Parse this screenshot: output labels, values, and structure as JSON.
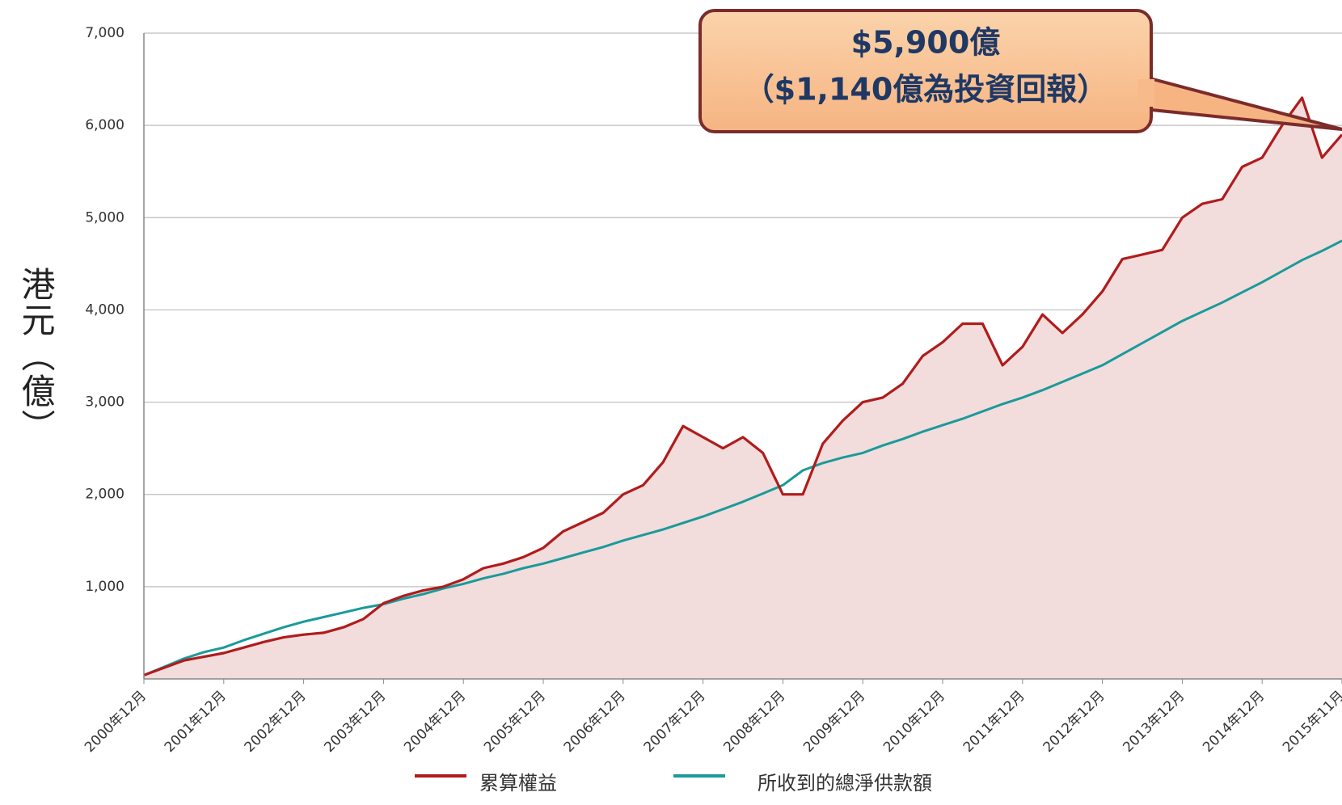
{
  "chart_data": {
    "type": "line",
    "y_label": "港元（億）",
    "annotation": {
      "line1": "$5,900億",
      "line2": "（$1,140億為投資回報）"
    },
    "categories": [
      "2000年12月",
      null,
      null,
      null,
      "2001年12月",
      null,
      null,
      null,
      "2002年12月",
      null,
      null,
      null,
      "2003年12月",
      null,
      null,
      null,
      "2004年12月",
      null,
      null,
      null,
      "2005年12月",
      null,
      null,
      null,
      "2006年12月",
      null,
      null,
      null,
      "2007年12月",
      null,
      null,
      null,
      "2008年12月",
      null,
      null,
      null,
      "2009年12月",
      null,
      null,
      null,
      "2010年12月",
      null,
      null,
      null,
      "2011年12月",
      null,
      null,
      null,
      "2012年12月",
      null,
      null,
      null,
      "2013年12月",
      null,
      null,
      null,
      "2014年12月",
      null,
      null,
      null,
      "2015年11月"
    ],
    "series": [
      {
        "name": "累算權益",
        "color": "#b01c1c",
        "values": [
          40,
          120,
          200,
          240,
          280,
          340,
          400,
          450,
          480,
          500,
          560,
          650,
          820,
          900,
          960,
          1000,
          1080,
          1200,
          1250,
          1320,
          1420,
          1600,
          1700,
          1800,
          2000,
          2100,
          2350,
          2740,
          2620,
          2500,
          2620,
          2450,
          2000,
          2000,
          2550,
          2800,
          3000,
          3050,
          3200,
          3500,
          3650,
          3850,
          3850,
          3400,
          3600,
          3950,
          3750,
          3950,
          4200,
          4550,
          4600,
          4650,
          5000,
          5150,
          5200,
          5550,
          5650,
          6000,
          6300,
          5650,
          5900
        ]
      },
      {
        "name": "所收到的總淨供款額",
        "color": "#1a9a9a",
        "values": [
          40,
          130,
          220,
          290,
          340,
          420,
          490,
          560,
          620,
          670,
          720,
          770,
          810,
          870,
          920,
          980,
          1030,
          1090,
          1140,
          1200,
          1250,
          1310,
          1370,
          1430,
          1500,
          1560,
          1620,
          1690,
          1760,
          1840,
          1920,
          2010,
          2100,
          2260,
          2340,
          2400,
          2450,
          2530,
          2600,
          2680,
          2750,
          2820,
          2900,
          2980,
          3050,
          3130,
          3220,
          3310,
          3400,
          3520,
          3640,
          3760,
          3880,
          3980,
          4080,
          4190,
          4300,
          4420,
          4540,
          4640,
          4750
        ]
      }
    ],
    "area_fill": "#f2dcdc",
    "ylim": [
      0,
      7000
    ],
    "yticks": [
      {
        "value": 1000,
        "label": "1,000"
      },
      {
        "value": 2000,
        "label": "2,000"
      },
      {
        "value": 3000,
        "label": "3,000"
      },
      {
        "value": 4000,
        "label": "4,000"
      },
      {
        "value": 5000,
        "label": "5,000"
      },
      {
        "value": 6000,
        "label": "6,000"
      },
      {
        "value": 7000,
        "label": "7,000"
      }
    ],
    "grid": true,
    "legend": "bottom"
  }
}
